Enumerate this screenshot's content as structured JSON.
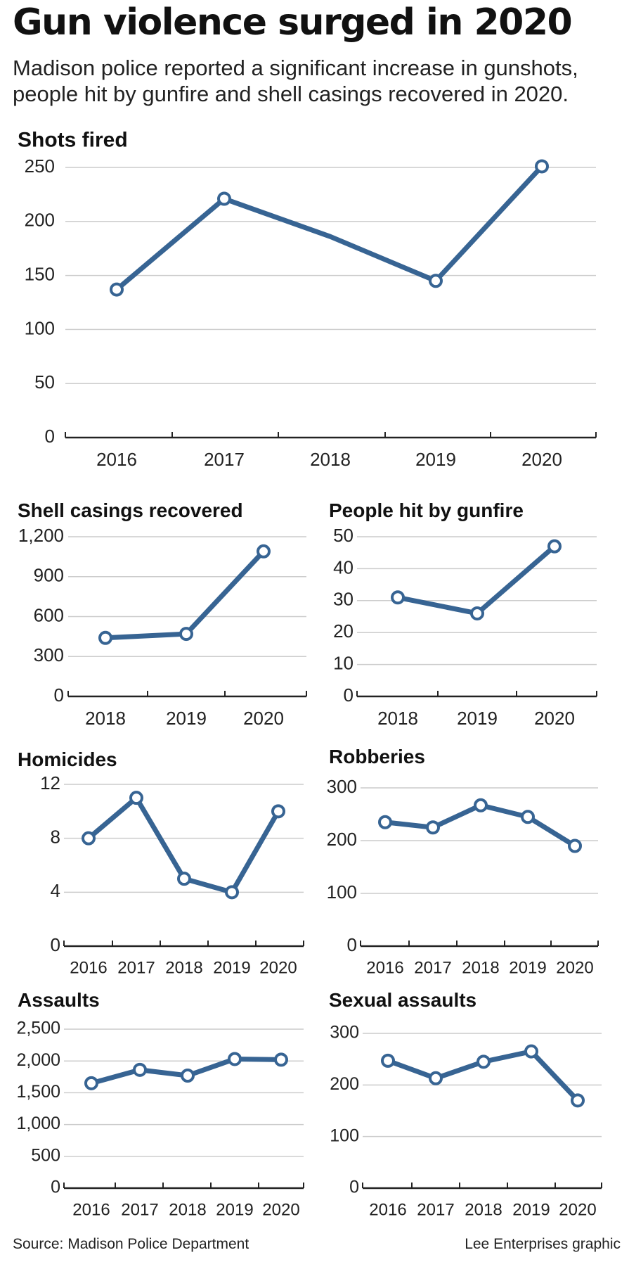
{
  "header": {
    "title": "Gun violence surged in 2020",
    "subtitle": "Madison police reported a significant increase in gunshots, people hit by gunfire and shell casings recovered in 2020."
  },
  "footer": {
    "source": "Source: Madison Police Department",
    "credit": "Lee Enterprises graphic"
  },
  "colors": {
    "line": "#376493",
    "grid": "#cccccc",
    "axis": "#222222"
  },
  "chart_data": [
    {
      "id": "shots-fired",
      "type": "line",
      "title": "Shots fired",
      "categories": [
        "2016",
        "2017",
        "2018",
        "2019",
        "2020"
      ],
      "values": [
        137,
        221,
        null,
        145,
        251
      ],
      "yticks": [
        0,
        50,
        100,
        150,
        200,
        250
      ],
      "ytick_labels": [
        "0",
        "50",
        "100",
        "150",
        "200",
        "250"
      ],
      "ylim": [
        0,
        250
      ]
    },
    {
      "id": "shell-casings",
      "type": "line",
      "title": "Shell casings recovered",
      "categories": [
        "2018",
        "2019",
        "2020"
      ],
      "values": [
        440,
        470,
        1090
      ],
      "yticks": [
        0,
        300,
        600,
        900,
        1200
      ],
      "ytick_labels": [
        "0",
        "300",
        "600",
        "900",
        "1,200"
      ],
      "ylim": [
        0,
        1200
      ]
    },
    {
      "id": "people-hit",
      "type": "line",
      "title": "People hit by gunfire",
      "categories": [
        "2018",
        "2019",
        "2020"
      ],
      "values": [
        31,
        26,
        47
      ],
      "yticks": [
        0,
        10,
        20,
        30,
        40,
        50
      ],
      "ytick_labels": [
        "0",
        "10",
        "20",
        "30",
        "40",
        "50"
      ],
      "ylim": [
        0,
        50
      ]
    },
    {
      "id": "homicides",
      "type": "line",
      "title": "Homicides",
      "categories": [
        "2016",
        "2017",
        "2018",
        "2019",
        "2020"
      ],
      "values": [
        8,
        11,
        5,
        4,
        10
      ],
      "yticks": [
        0,
        4,
        8,
        12
      ],
      "ytick_labels": [
        "0",
        "4",
        "8",
        "12"
      ],
      "ylim": [
        0,
        12
      ]
    },
    {
      "id": "robberies",
      "type": "line",
      "title": "Robberies",
      "categories": [
        "2016",
        "2017",
        "2018",
        "2019",
        "2020"
      ],
      "values": [
        235,
        225,
        267,
        245,
        190
      ],
      "yticks": [
        0,
        100,
        200,
        300
      ],
      "ytick_labels": [
        "0",
        "100",
        "200",
        "300"
      ],
      "ylim": [
        0,
        300
      ]
    },
    {
      "id": "assaults",
      "type": "line",
      "title": "Assaults",
      "categories": [
        "2016",
        "2017",
        "2018",
        "2019",
        "2020"
      ],
      "values": [
        1650,
        1860,
        1770,
        2030,
        2020
      ],
      "yticks": [
        0,
        500,
        1000,
        1500,
        2000,
        2500
      ],
      "ytick_labels": [
        "0",
        "500",
        "1,000",
        "1,500",
        "2,000",
        "2,500"
      ],
      "ylim": [
        0,
        2500
      ]
    },
    {
      "id": "sexual-assaults",
      "type": "line",
      "title": "Sexual assaults",
      "categories": [
        "2016",
        "2017",
        "2018",
        "2019",
        "2020"
      ],
      "values": [
        247,
        213,
        245,
        265,
        170
      ],
      "yticks": [
        0,
        100,
        200,
        300
      ],
      "ytick_labels": [
        "0",
        "100",
        "200",
        "300"
      ],
      "ylim": [
        0,
        300
      ]
    }
  ]
}
